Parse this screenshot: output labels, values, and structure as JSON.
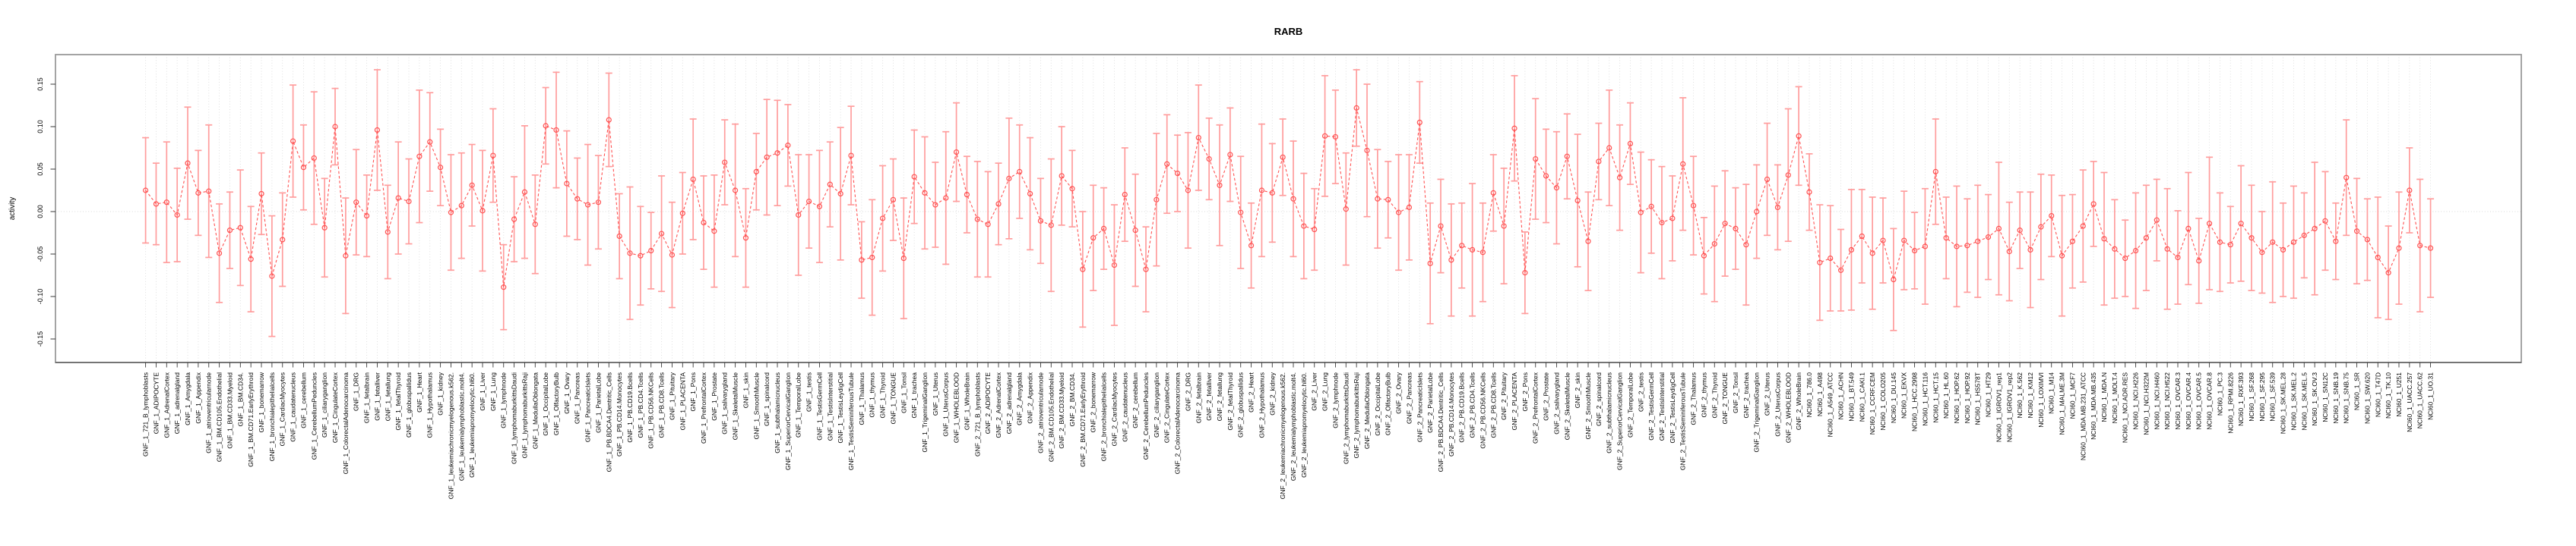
{
  "chart_data": {
    "type": "line",
    "subtype": "points-with-error-bars",
    "title": "RARB",
    "xlabel": "",
    "ylabel": "activity",
    "ylim": [
      -0.178,
      0.185
    ],
    "ytick_values": [
      0.15,
      0.1,
      0.05,
      0.0,
      -0.05,
      -0.1,
      -0.15
    ],
    "ytick_labels": [
      "0.15",
      "0.10",
      "0.05",
      "0.00",
      "-0.05",
      "-0.10",
      "-0.15"
    ],
    "legend": "none",
    "grid": "vertical-dotted-per-category-and-dotted-zero-line",
    "marker": "open-circle",
    "line_style": "dashed",
    "error_bars": true,
    "colors": {
      "series": "#ff5252",
      "error_bar": "#ff9d9d",
      "grid": "#dcdcdc",
      "zero_line": "#d9d9d9",
      "box": "#9a9a9a",
      "axis": "#3a3a3a",
      "text": "#000000",
      "background": "#ffffff"
    },
    "categories": [
      "GNF_1_721_B_lymphoblasts",
      "GNF_1_ADIPOCYTE",
      "GNF_1_AdrenalCortex",
      "GNF_1_adrenalgland",
      "GNF_1_Amygdala",
      "GNF_1_Appendix",
      "GNF_1_atrioventricularnode",
      "GNF_1_BM.CD105.Endothelial",
      "GNF_1_BM.CD33.Myeloid",
      "GNF_1_BM.CD34.",
      "GNF_1_BM.CD71.EarlyErythroid",
      "GNF_1_bonemarrow",
      "GNF_1_bronchialepithelialcells",
      "GNF_1_CardiacMyocytes",
      "GNF_1_caudatenucleus",
      "GNF_1_cerebellum",
      "GNF_1_CerebellumPeduncles",
      "GNF_1_ciliaryganglion",
      "GNF_1_CingulateCortex",
      "GNF_1_ColorectalAdenocarcinoma",
      "GNF_1_DRG",
      "GNF_1_fetalbrain",
      "GNF_1_fetalliver",
      "GNF_1_fetallung",
      "GNF_1_fetalThyroid",
      "GNF_1_globuspallidus",
      "GNF_1_Heart",
      "GNF_1_Hypothalamus",
      "GNF_1_kidney",
      "GNF_1_leukemiachronicmyelogenous.k562.",
      "GNF_1_leukemialymphoblastic.molt4.",
      "GNF_1_leukemiapromyelocytic.hl60.",
      "GNF_1_Liver",
      "GNF_1_Lung",
      "GNF_1_lymphnode",
      "GNF_1_lymphomaburkittsDaudi",
      "GNF_1_lymphomaburkittsRaji",
      "GNF_1_MedullaOblongata",
      "GNF_1_OccipitalLobe",
      "GNF_1_OlfactoryBulb",
      "GNF_1_Ovary",
      "GNF_1_Pancreas",
      "GNF_1_PancreaticIslets",
      "GNF_1_ParietalLobe",
      "GNF_1_PB.BDCA4.Dentritic_Cells",
      "GNF_1_PB.CD14.Monocytes",
      "GNF_1_PB.CD19.Bcells",
      "GNF_1_PB.CD4.Tcells",
      "GNF_1_PB.CD56.NKCells",
      "GNF_1_PB.CD8.Tcells",
      "GNF_1_Pituitary",
      "GNF_1_PLACENTA",
      "GNF_1_Pons",
      "GNF_1_PrefrontalCortex",
      "GNF_1_Prostate",
      "GNF_1_salivarygland",
      "GNF_1_SkeletalMuscle",
      "GNF_1_skin",
      "GNF_1_SmoothMuscle",
      "GNF_1_spinalcord",
      "GNF_1_subthalamicnucleus",
      "GNF_1_SuperiorCervicalGanglion",
      "GNF_1_TemporalLobe",
      "GNF_1_testis",
      "GNF_1_TestisGermCell",
      "GNF_1_TestisInterstitial",
      "GNF_1_TestisLeydigCell",
      "GNF_1_TestisSeminiferousTubule",
      "GNF_1_Thalamus",
      "GNF_1_thymus",
      "GNF_1_Thyroid",
      "GNF_1_TONGUE",
      "GNF_1_Tonsil",
      "GNF_1_trachea",
      "GNF_1_TrigeminalGanglion",
      "GNF_1_Uterus",
      "GNF_1_UterusCorpus",
      "GNF_1_WHOLEBLOOD",
      "GNF_1_WholeBrain",
      "GNF_2_721_B_lymphoblasts",
      "GNF_2_ADIPOCYTE",
      "GNF_2_AdrenalCortex",
      "GNF_2_adrenalgland",
      "GNF_2_Amygdala",
      "GNF_2_Appendix",
      "GNF_2_atrioventricularnode",
      "GNF_2_BM.CD105.Endothelial",
      "GNF_2_BM.CD33.Myeloid",
      "GNF_2_BM.CD34.",
      "GNF_2_BM.CD71.EarlyErythroid",
      "GNF_2_bonemarrow",
      "GNF_2_bronchialepithelialcells",
      "GNF_2_CardiacMyocytes",
      "GNF_2_caudatenucleus",
      "GNF_2_cerebellum",
      "GNF_2_CerebellumPeduncles",
      "GNF_2_ciliaryganglion",
      "GNF_2_CingulateCortex",
      "GNF_2_ColorectalAdenocarcinoma",
      "GNF_2_DRG",
      "GNF_2_fetalbrain",
      "GNF_2_fetalliver",
      "GNF_2_fetallung",
      "GNF_2_fetalThyroid",
      "GNF_2_globuspallidus",
      "GNF_2_Heart",
      "GNF_2_Hypothalamus",
      "GNF_2_kidney",
      "GNF_2_leukemiachronicmyelogenous.k562.",
      "GNF_2_leukemialymphoblastic.molt4.",
      "GNF_2_leukemiapromyelocytic.hl60.",
      "GNF_2_Liver",
      "GNF_2_Lung",
      "GNF_2_lymphnode",
      "GNF_2_lymphomaburkittsDaudi",
      "GNF_2_lymphomaburkittsRaji",
      "GNF_2_MedullaOblongata",
      "GNF_2_OccipitalLobe",
      "GNF_2_OlfactoryBulb",
      "GNF_2_Ovary",
      "GNF_2_Pancreas",
      "GNF_2_PancreaticIslets",
      "GNF_2_ParietalLobe",
      "GNF_2_PB.BDCA4.Dentritic_Cells",
      "GNF_2_PB.CD14.Monocytes",
      "GNF_2_PB.CD19.Bcells",
      "GNF_2_PB.CD4.Tcells",
      "GNF_2_PB.CD56.NKCells",
      "GNF_2_PB.CD8.Tcells",
      "GNF_2_Pituitary",
      "GNF_2_PLACENTA",
      "GNF_2_Pons",
      "GNF_2_PrefrontalCortex",
      "GNF_2_Prostate",
      "GNF_2_salivarygland",
      "GNF_2_SkeletalMuscle",
      "GNF_2_skin",
      "GNF_2_SmoothMuscle",
      "GNF_2_spinalcord",
      "GNF_2_subthalamicnucleus",
      "GNF_2_SuperiorCervicalGanglion",
      "GNF_2_TemporalLobe",
      "GNF_2_testis",
      "GNF_2_TestisGermCell",
      "GNF_2_TestisInterstitial",
      "GNF_2_TestisLeydigCell",
      "GNF_2_TestisSeminiferousTubule",
      "GNF_2_Thalamus",
      "GNF_2_thymus",
      "GNF_2_Thyroid",
      "GNF_2_TONGUE",
      "GNF_2_Tonsil",
      "GNF_2_trachea",
      "GNF_2_TrigeminalGanglion",
      "GNF_2_Uterus",
      "GNF_2_UterusCorpus",
      "GNF_2_WHOLEBLOOD",
      "GNF_2_WholeBrain",
      "NCI60_1_786.0",
      "NCI60_1_A498",
      "NCI60_1_A549_ATCC",
      "NCI60_1_ACHN",
      "NCI60_1_BT.549",
      "NCI60_1_CAKI.1",
      "NCI60_1_CCRF.CEM",
      "NCI60_1_COLO205",
      "NCI60_1_DU.145",
      "NCI60_1_EKVX",
      "NCI60_1_HCC.2998",
      "NCI60_1_HCT.116",
      "NCI60_1_HCT.15",
      "NCI60_1_HL.60",
      "NCI60_1_HOP.62",
      "NCI60_1_HOP.92",
      "NCI60_1_HS578T",
      "NCI60_1_HT29",
      "NCI60_1_IGROV1_rep1",
      "NCI60_1_IGROV1_rep2",
      "NCI60_1_K.562",
      "NCI60_1_KM12",
      "NCI60_1_LOXIMVI",
      "NCI60_1_M14",
      "NCI60_1_MALME.3M",
      "NCI60_1_MCF7",
      "NCI60_1_MDA.MB.231_ATCC",
      "NCI60_1_MDA.MB.435",
      "NCI60_1_MDA.N",
      "NCI60_1_MOLT.4",
      "NCI60_1_NCI.ADR.RES",
      "NCI60_1_NCI.H226",
      "NCI60_1_NCI.H322M",
      "NCI60_1_NCI.H460",
      "NCI60_1_NCI.H522",
      "NCI60_1_OVCAR.3",
      "NCI60_1_OVCAR.4",
      "NCI60_1_OVCAR.5",
      "NCI60_1_OVCAR.8",
      "NCI60_1_PC.3",
      "NCI60_1_RPMI.8226",
      "NCI60_1_RXF.393",
      "NCI60_1_SF.268",
      "NCI60_1_SF.295",
      "NCI60_1_SF.539",
      "NCI60_1_SK.MEL.28",
      "NCI60_1_SK.MEL.2",
      "NCI60_1_SK.MEL.5",
      "NCI60_1_SK.OV.3",
      "NCI60_1_SN12C",
      "NCI60_1_SNB.19",
      "NCI60_1_SNB.75",
      "NCI60_1_SR",
      "NCI60_1_SW.620",
      "NCI60_1_T47D",
      "NCI60_1_TK.10",
      "NCI60_1_U251",
      "NCI60_1_UACC.257",
      "NCI60_1_UACC.62",
      "NCI60_1_UO.31"
    ],
    "values": [
      0.025,
      0.009,
      0.011,
      -0.004,
      0.057,
      0.022,
      0.024,
      -0.049,
      -0.022,
      -0.019,
      -0.056,
      0.021,
      -0.076,
      -0.033,
      0.083,
      0.052,
      0.063,
      -0.019,
      0.1,
      -0.052,
      0.011,
      -0.005,
      0.096,
      -0.024,
      0.016,
      0.012,
      0.065,
      0.082,
      0.052,
      -0.001,
      0.007,
      0.031,
      0.001,
      0.066,
      -0.089,
      -0.009,
      0.023,
      -0.015,
      0.101,
      0.096,
      0.033,
      0.015,
      0.008,
      0.011,
      0.108,
      -0.029,
      -0.049,
      -0.052,
      -0.046,
      -0.026,
      -0.051,
      -0.002,
      0.038,
      -0.013,
      -0.023,
      0.058,
      0.025,
      -0.031,
      0.047,
      0.064,
      0.069,
      0.078,
      -0.004,
      0.012,
      0.006,
      0.032,
      0.021,
      0.066,
      -0.057,
      -0.054,
      -0.008,
      0.014,
      -0.055,
      0.041,
      0.022,
      0.008,
      0.016,
      0.07,
      0.02,
      -0.009,
      -0.015,
      0.009,
      0.039,
      0.047,
      0.021,
      -0.011,
      -0.016,
      0.042,
      0.027,
      -0.068,
      -0.031,
      -0.02,
      -0.063,
      0.02,
      -0.022,
      -0.068,
      0.014,
      0.056,
      0.045,
      0.025,
      0.087,
      0.062,
      0.031,
      0.067,
      -0.001,
      -0.04,
      0.025,
      0.022,
      0.064,
      0.015,
      -0.017,
      -0.021,
      0.089,
      0.088,
      0.003,
      0.122,
      0.072,
      0.015,
      0.014,
      -0.001,
      0.005,
      0.105,
      -0.061,
      -0.017,
      -0.057,
      -0.04,
      -0.045,
      -0.048,
      0.022,
      -0.017,
      0.098,
      -0.072,
      0.062,
      0.042,
      0.028,
      0.065,
      0.013,
      -0.035,
      0.059,
      0.075,
      0.04,
      0.08,
      -0.001,
      0.006,
      -0.013,
      -0.008,
      0.056,
      0.007,
      -0.052,
      -0.038,
      -0.014,
      -0.02,
      -0.039,
      0.0,
      0.038,
      0.005,
      0.043,
      0.089,
      0.023,
      -0.06,
      -0.055,
      -0.069,
      -0.045,
      -0.029,
      -0.049,
      -0.034,
      -0.08,
      -0.034,
      -0.046,
      -0.041,
      0.047,
      -0.031,
      -0.041,
      -0.04,
      -0.035,
      -0.03,
      -0.02,
      -0.047,
      -0.022,
      -0.045,
      -0.018,
      -0.005,
      -0.052,
      -0.035,
      -0.017,
      0.009,
      -0.032,
      -0.044,
      -0.055,
      -0.046,
      -0.031,
      -0.01,
      -0.044,
      -0.054,
      -0.02,
      -0.058,
      -0.014,
      -0.036,
      -0.039,
      -0.014,
      -0.031,
      -0.048,
      -0.036,
      -0.045,
      -0.036,
      -0.028,
      -0.02,
      -0.011,
      -0.035,
      0.04,
      -0.023,
      -0.033,
      -0.054,
      -0.072,
      -0.043,
      0.025,
      -0.04,
      -0.043
    ],
    "errors": [
      0.062,
      0.048,
      0.071,
      0.055,
      0.066,
      0.05,
      0.078,
      0.058,
      0.045,
      0.068,
      0.062,
      0.048,
      0.071,
      0.055,
      0.066,
      0.05,
      0.078,
      0.058,
      0.045,
      0.068,
      0.062,
      0.048,
      0.071,
      0.055,
      0.066,
      0.05,
      0.078,
      0.058,
      0.045,
      0.068,
      0.062,
      0.048,
      0.071,
      0.055,
      0.05,
      0.05,
      0.078,
      0.058,
      0.045,
      0.068,
      0.062,
      0.048,
      0.071,
      0.055,
      0.055,
      0.05,
      0.078,
      0.058,
      0.045,
      0.068,
      0.062,
      0.048,
      0.071,
      0.055,
      0.066,
      0.05,
      0.078,
      0.058,
      0.045,
      0.068,
      0.062,
      0.048,
      0.071,
      0.055,
      0.066,
      0.05,
      0.078,
      0.058,
      0.045,
      0.068,
      0.062,
      0.048,
      0.071,
      0.055,
      0.066,
      0.05,
      0.078,
      0.058,
      0.045,
      0.068,
      0.062,
      0.048,
      0.071,
      0.055,
      0.066,
      0.05,
      0.078,
      0.058,
      0.045,
      0.068,
      0.062,
      0.048,
      0.071,
      0.055,
      0.066,
      0.05,
      0.078,
      0.058,
      0.045,
      0.068,
      0.062,
      0.048,
      0.071,
      0.055,
      0.066,
      0.05,
      0.078,
      0.058,
      0.045,
      0.068,
      0.062,
      0.048,
      0.071,
      0.055,
      0.066,
      0.045,
      0.078,
      0.058,
      0.045,
      0.068,
      0.062,
      0.048,
      0.071,
      0.055,
      0.066,
      0.05,
      0.078,
      0.058,
      0.045,
      0.068,
      0.062,
      0.048,
      0.071,
      0.055,
      0.066,
      0.05,
      0.078,
      0.058,
      0.045,
      0.068,
      0.062,
      0.048,
      0.071,
      0.055,
      0.066,
      0.05,
      0.078,
      0.058,
      0.045,
      0.068,
      0.062,
      0.048,
      0.071,
      0.055,
      0.066,
      0.05,
      0.078,
      0.058,
      0.045,
      0.068,
      0.062,
      0.048,
      0.071,
      0.055,
      0.066,
      0.05,
      0.06,
      0.058,
      0.045,
      0.068,
      0.062,
      0.048,
      0.071,
      0.055,
      0.066,
      0.05,
      0.078,
      0.058,
      0.045,
      0.068,
      0.062,
      0.048,
      0.071,
      0.055,
      0.066,
      0.05,
      0.078,
      0.058,
      0.045,
      0.068,
      0.062,
      0.048,
      0.071,
      0.055,
      0.066,
      0.05,
      0.078,
      0.058,
      0.045,
      0.068,
      0.062,
      0.048,
      0.071,
      0.055,
      0.066,
      0.05,
      0.078,
      0.058,
      0.045,
      0.068,
      0.062,
      0.048,
      0.071,
      0.055,
      0.066,
      0.05,
      0.078,
      0.058
    ]
  }
}
